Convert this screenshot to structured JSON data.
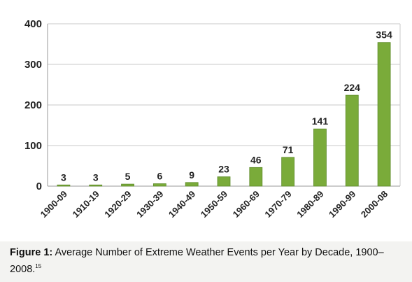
{
  "chart_data": {
    "type": "bar",
    "categories": [
      "1900-09",
      "1910-19",
      "1920-29",
      "1930-39",
      "1940-49",
      "1950-59",
      "1960-69",
      "1970-79",
      "1980-89",
      "1990-99",
      "2000-08"
    ],
    "values": [
      3,
      3,
      5,
      6,
      9,
      23,
      46,
      71,
      141,
      224,
      354
    ],
    "data_labels": [
      "3",
      "3",
      "5",
      "6",
      "9",
      "23",
      "46",
      "71",
      "141",
      "224",
      "354"
    ],
    "ylim": [
      0,
      400
    ],
    "yticks": [
      0,
      100,
      200,
      300,
      400
    ],
    "ytick_labels": [
      "0",
      "100",
      "200",
      "300",
      "400"
    ],
    "grid": true,
    "legend": "none",
    "bar_color": "#7aab3a",
    "bar_edge_color": "#5e8c2a"
  },
  "caption": {
    "label": "Figure 1:",
    "text": " Average Number of Extreme Weather Events per Year by Decade, 1900–2008.",
    "ref": "15"
  }
}
